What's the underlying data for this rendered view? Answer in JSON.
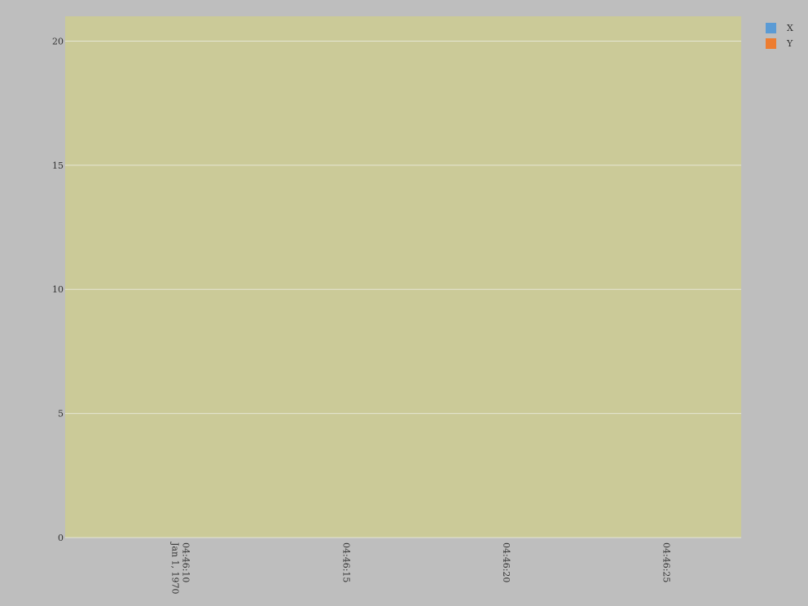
{
  "chart_data": {
    "type": "line",
    "title": "",
    "xlabel": "",
    "ylabel": "",
    "x_axis_type": "time",
    "x_tick_labels": [
      {
        "time": "04:46:10",
        "date": "Jan 1, 1970"
      },
      {
        "time": "04:46:15",
        "date": ""
      },
      {
        "time": "04:46:20",
        "date": ""
      },
      {
        "time": "04:46:25",
        "date": ""
      }
    ],
    "x_tick_values": [
      "1970-01-01T04:46:10",
      "1970-01-01T04:46:15",
      "1970-01-01T04:46:20",
      "1970-01-01T04:46:25"
    ],
    "xlim": [
      "1970-01-01T04:46:06.4",
      "1970-01-01T04:46:27.5"
    ],
    "y_ticks": [
      0,
      5,
      10,
      15,
      20
    ],
    "y_tick_labels": [
      "0",
      "5",
      "10",
      "15",
      "20"
    ],
    "ylim": [
      0,
      21
    ],
    "grid": true,
    "series": [
      {
        "name": "X",
        "color": "#5b9bd5",
        "values": []
      },
      {
        "name": "Y",
        "color": "#ed7d31",
        "values": []
      }
    ],
    "legend": {
      "position": "top-right",
      "marker": "square"
    },
    "colors": {
      "background": "#bebebe",
      "plot_background": "#cbca98",
      "grid": "#e6e6d4"
    }
  }
}
